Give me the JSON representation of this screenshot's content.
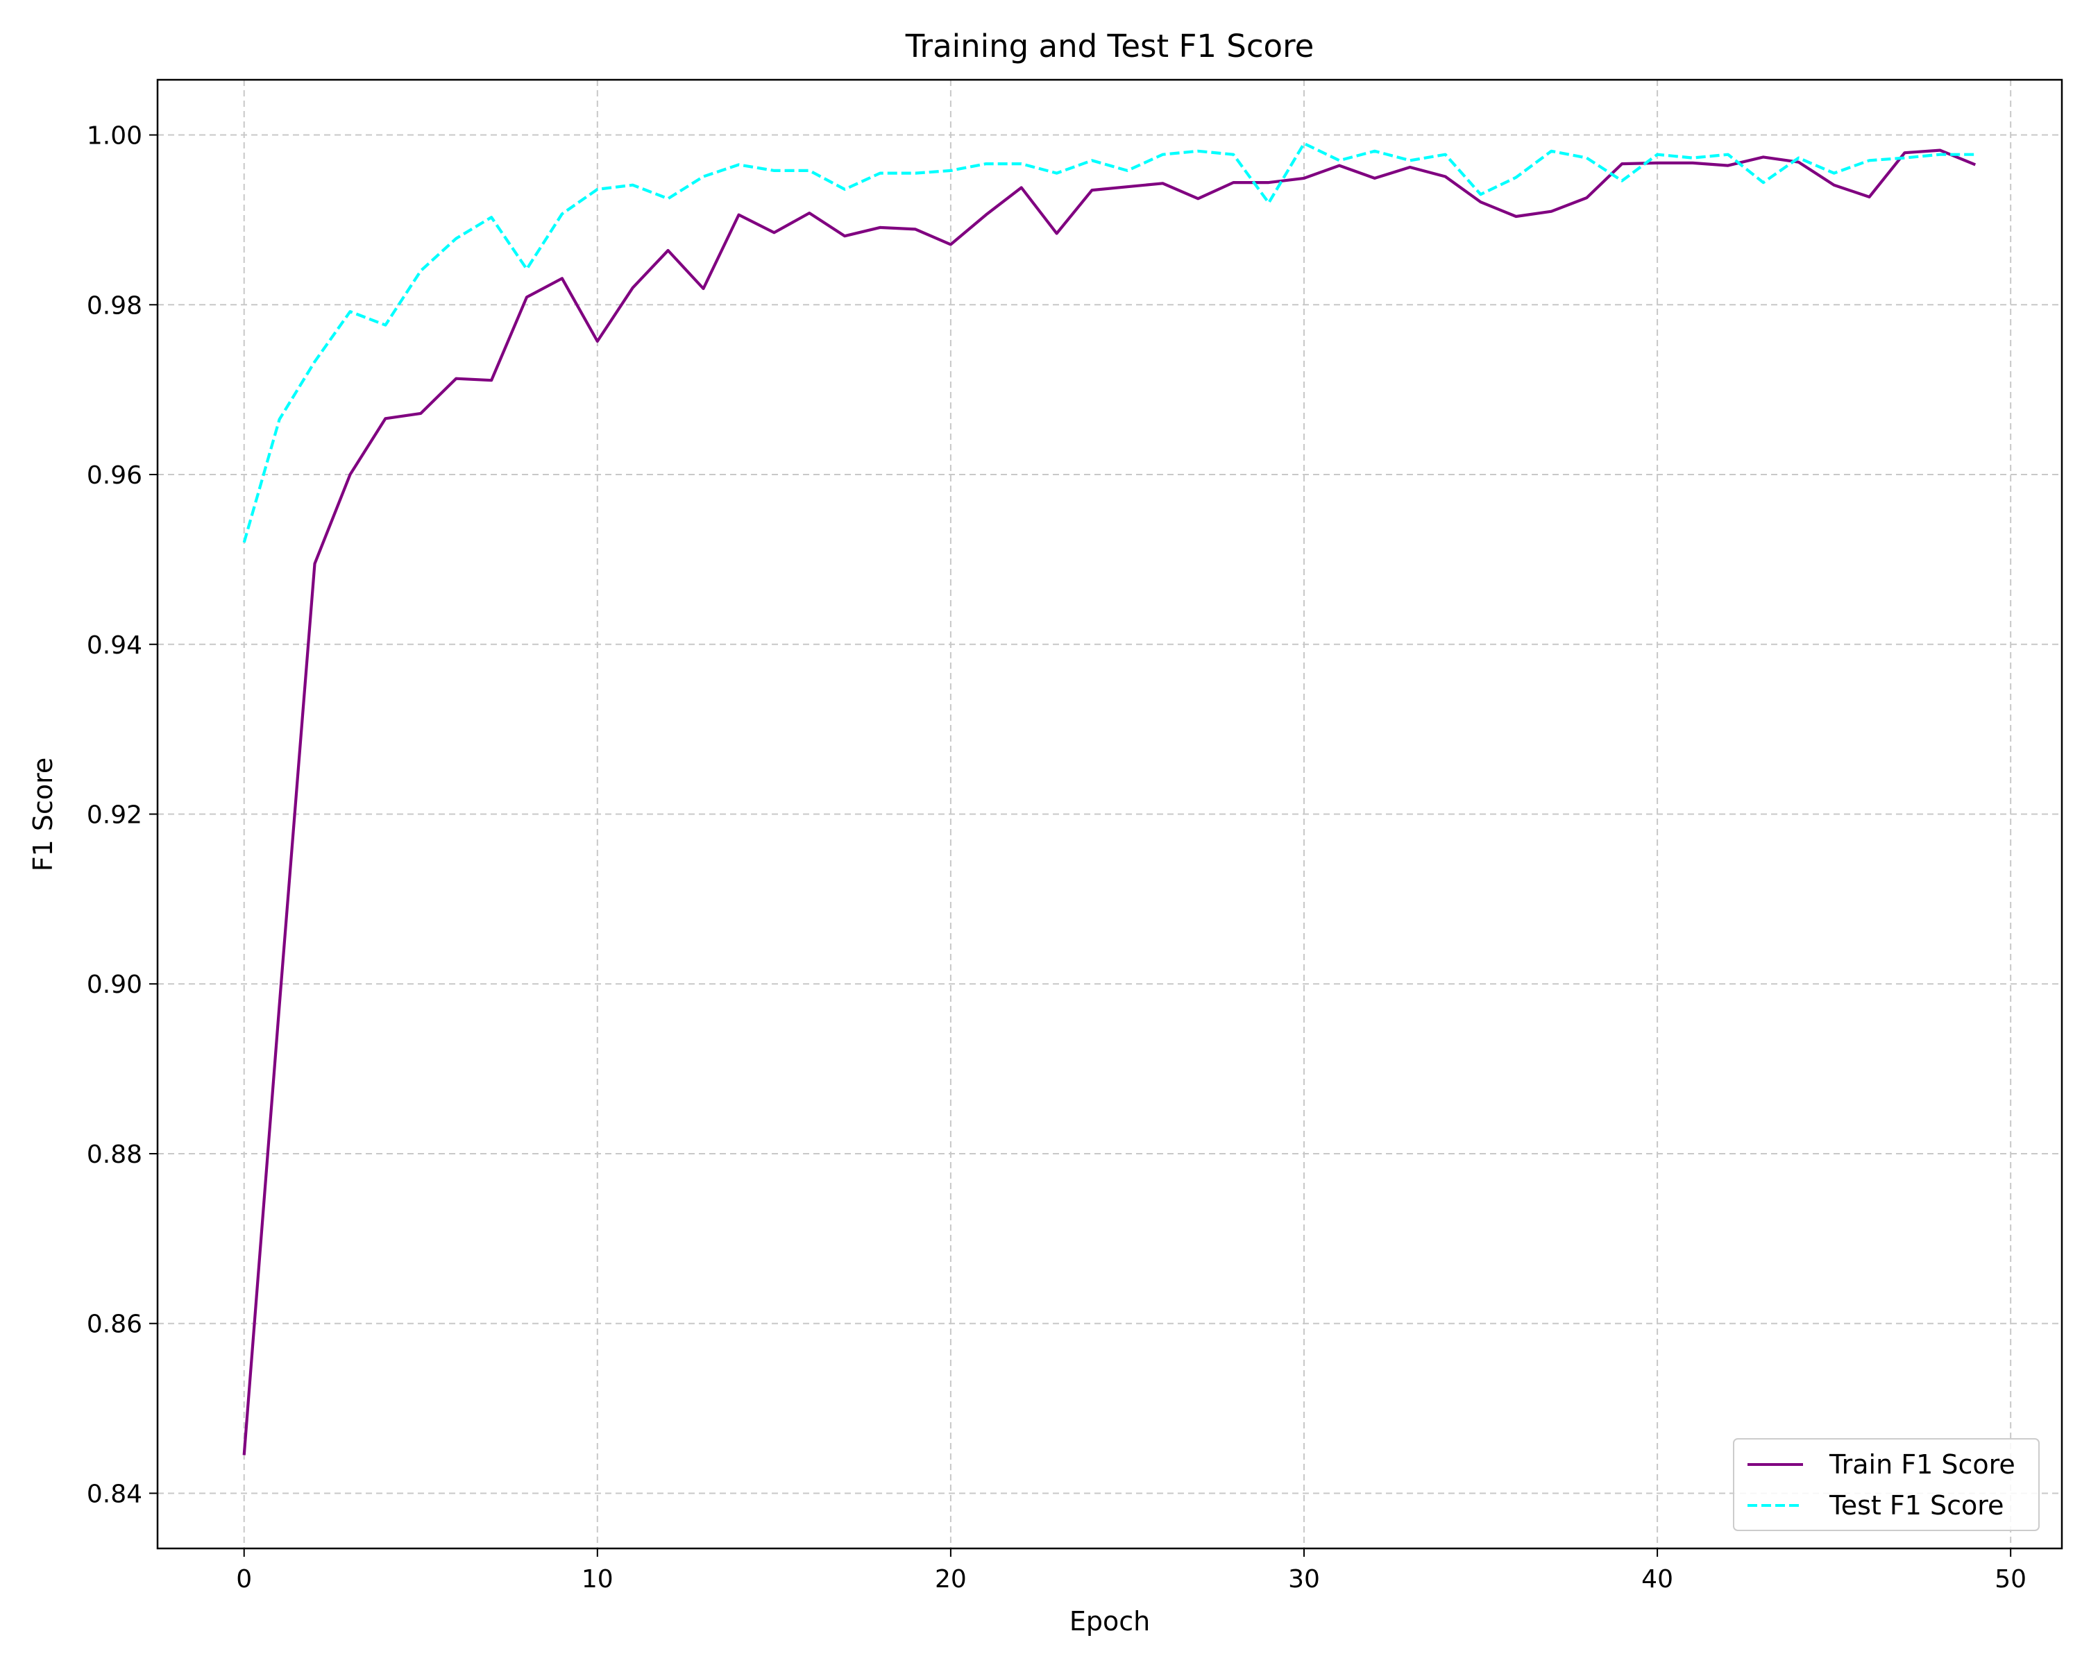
{
  "chart_data": {
    "type": "line",
    "title": "Training and Test F1 Score",
    "xlabel": "Epoch",
    "ylabel": "F1 Score",
    "xlim": [
      -2.45,
      51.45
    ],
    "ylim": [
      0.8335,
      1.0065
    ],
    "xticks": [
      0,
      10,
      20,
      30,
      40,
      50
    ],
    "xtick_labels": [
      "0",
      "10",
      "20",
      "30",
      "40",
      "50"
    ],
    "yticks": [
      0.84,
      0.86,
      0.88,
      0.9,
      0.92,
      0.94,
      0.96,
      0.98,
      1.0
    ],
    "ytick_labels": [
      "0.84",
      "0.86",
      "0.88",
      "0.90",
      "0.92",
      "0.94",
      "0.96",
      "0.98",
      "1.00"
    ],
    "grid": true,
    "legend_position": "lower-right",
    "x": [
      0,
      1,
      2,
      3,
      4,
      5,
      6,
      7,
      8,
      9,
      10,
      11,
      12,
      13,
      14,
      15,
      16,
      17,
      18,
      19,
      20,
      21,
      22,
      23,
      24,
      25,
      26,
      27,
      28,
      29,
      30,
      31,
      32,
      33,
      34,
      35,
      36,
      37,
      38,
      39,
      40,
      41,
      42,
      43,
      44,
      45,
      46,
      47,
      48,
      49
    ],
    "series": [
      {
        "name": "Train F1 Score",
        "color": "#800080",
        "style": "solid",
        "values": [
          0.8445,
          0.8975,
          0.9495,
          0.96,
          0.9666,
          0.9672,
          0.9713,
          0.9711,
          0.9809,
          0.9831,
          0.9757,
          0.982,
          0.9864,
          0.9819,
          0.9906,
          0.9885,
          0.9908,
          0.9881,
          0.9891,
          0.9889,
          0.9871,
          0.9906,
          0.9938,
          0.9884,
          0.9935,
          0.9939,
          0.9943,
          0.9925,
          0.9944,
          0.9944,
          0.9949,
          0.9964,
          0.9949,
          0.9962,
          0.9951,
          0.9921,
          0.9904,
          0.991,
          0.9926,
          0.9966,
          0.9967,
          0.9967,
          0.9964,
          0.9974,
          0.9968,
          0.9941,
          0.9927,
          0.9979,
          0.9982,
          0.9965
        ]
      },
      {
        "name": "Test F1 Score",
        "color": "#00FFFF",
        "style": "dashed",
        "values": [
          0.952,
          0.9665,
          0.9733,
          0.9792,
          0.9776,
          0.984,
          0.9878,
          0.9903,
          0.9842,
          0.9907,
          0.9936,
          0.9941,
          0.9925,
          0.9951,
          0.9965,
          0.9958,
          0.9958,
          0.9936,
          0.9955,
          0.9955,
          0.9958,
          0.9966,
          0.9966,
          0.9955,
          0.997,
          0.9958,
          0.9977,
          0.9981,
          0.9977,
          0.992,
          0.999,
          0.997,
          0.9981,
          0.997,
          0.9977,
          0.993,
          0.995,
          0.9981,
          0.9973,
          0.9946,
          0.9977,
          0.9973,
          0.9977,
          0.9944,
          0.9973,
          0.9955,
          0.997,
          0.9973,
          0.9977,
          0.9977
        ]
      }
    ]
  }
}
